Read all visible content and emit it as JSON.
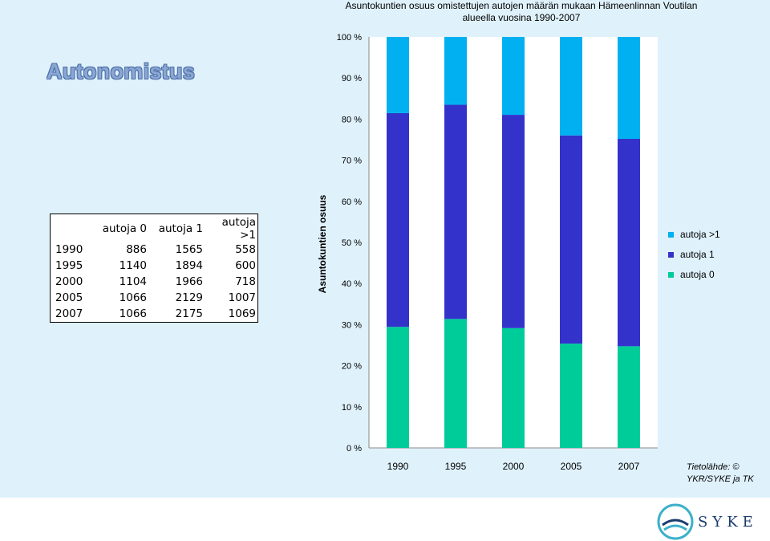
{
  "slide": {
    "section_title": "Autonomistus",
    "source_note": "Tietolähde: © YKR/SYKE ja TK",
    "logo_text": "SYKE"
  },
  "table": {
    "headers": [
      "",
      "autoja 0",
      "autoja 1",
      "autoja >1"
    ],
    "rows": [
      [
        "1990",
        "886",
        "1565",
        "558"
      ],
      [
        "1995",
        "1140",
        "1894",
        "600"
      ],
      [
        "2000",
        "1104",
        "1966",
        "718"
      ],
      [
        "2005",
        "1066",
        "2129",
        "1007"
      ],
      [
        "2007",
        "1066",
        "2175",
        "1069"
      ]
    ]
  },
  "colors": {
    "autoja_0": "#00cc99",
    "autoja_1": "#3333cc",
    "autoja_gt1": "#00b0f0"
  },
  "chart_data": {
    "type": "bar",
    "stacked": "percent",
    "title": "Asuntokuntien osuus omistettujen autojen määrän mukaan Hämeenlinnan Voutilan alueella vuosina 1990-2007",
    "ylabel": "Asuntokuntien osuus",
    "xlabel": "",
    "categories": [
      "1990",
      "1995",
      "2000",
      "2005",
      "2007"
    ],
    "series": [
      {
        "name": "autoja 0",
        "values": [
          886,
          1140,
          1104,
          1066,
          1066
        ]
      },
      {
        "name": "autoja 1",
        "values": [
          1565,
          1894,
          1966,
          2129,
          2175
        ]
      },
      {
        "name": "autoja >1",
        "values": [
          558,
          600,
          718,
          1007,
          1069
        ]
      }
    ],
    "ylim": [
      0,
      100
    ],
    "yticks": [
      "0 %",
      "10 %",
      "20 %",
      "30 %",
      "40 %",
      "50 %",
      "60 %",
      "70 %",
      "80 %",
      "90 %",
      "100 %"
    ],
    "legend": [
      "autoja >1",
      "autoja 1",
      "autoja 0"
    ],
    "legend_position": "right",
    "grid": false
  }
}
